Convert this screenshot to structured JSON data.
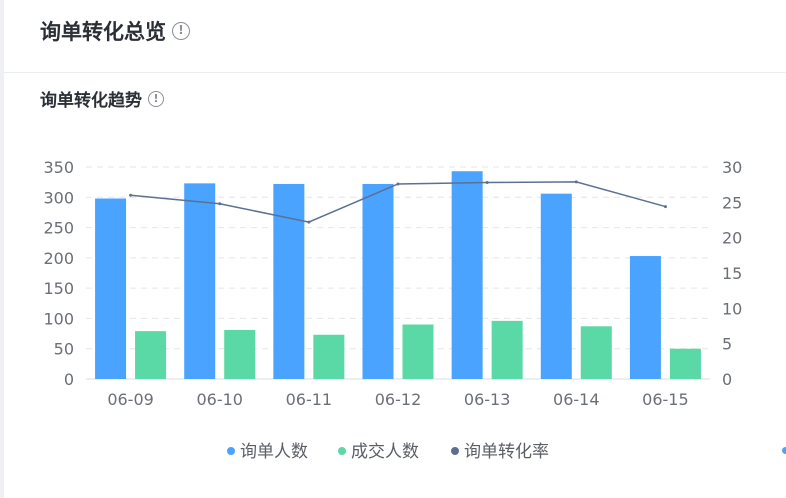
{
  "page": {
    "title": "询单转化总览",
    "section_title": "询单转化趋势"
  },
  "chart_data": {
    "type": "bar",
    "categories": [
      "06-09",
      "06-10",
      "06-11",
      "06-12",
      "06-13",
      "06-14",
      "06-15"
    ],
    "series": [
      {
        "name": "询单人数",
        "type": "bar",
        "axis": "left",
        "color": "#4aa3ff",
        "values": [
          298,
          323,
          322,
          322,
          343,
          306,
          203
        ]
      },
      {
        "name": "成交人数",
        "type": "bar",
        "axis": "left",
        "color": "#5ad8a6",
        "values": [
          79,
          81,
          73,
          90,
          96,
          87,
          50
        ]
      },
      {
        "name": "询单转化率",
        "type": "line",
        "axis": "right",
        "color": "#5d7092",
        "values": [
          26.0,
          24.8,
          22.2,
          27.6,
          27.8,
          27.9,
          24.4
        ]
      }
    ],
    "y_left": {
      "min": 0,
      "max": 350,
      "ticks": [
        "0",
        "50",
        "100",
        "150",
        "200",
        "250",
        "300",
        "350"
      ]
    },
    "y_right": {
      "min": 0,
      "max": 30,
      "ticks": [
        "0",
        "5",
        "10",
        "15",
        "20",
        "25",
        "30"
      ]
    },
    "grid": true,
    "legend_position": "bottom"
  }
}
